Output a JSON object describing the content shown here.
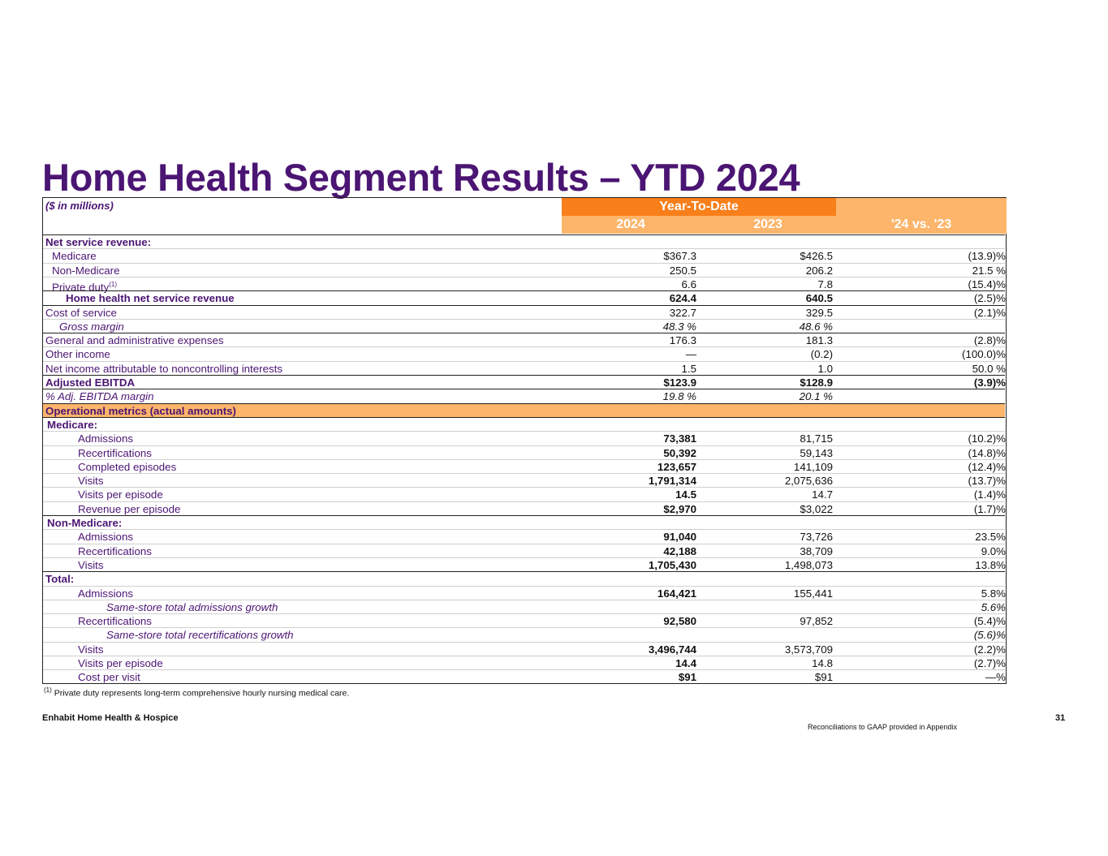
{
  "title": "Home Health Segment Results – YTD 2024",
  "units_label": "($ in millions)",
  "header": {
    "group": "Year-To-Date",
    "col1": "2024",
    "col2": "2023",
    "col3": "'24 vs. '23"
  },
  "rows": [
    {
      "label": "Net service revenue:",
      "v24": "",
      "v23": "",
      "ch": ""
    },
    {
      "label": "Medicare",
      "v24": "$367.3",
      "v23": "$426.5",
      "ch": "(13.9)%"
    },
    {
      "label": "Non-Medicare",
      "v24": "250.5",
      "v23": "206.2",
      "ch": "21.5 %"
    },
    {
      "label": "Private duty",
      "sup": "(1)",
      "v24": "6.6",
      "v23": "7.8",
      "ch": "(15.4)%"
    },
    {
      "label": "Home health net service revenue",
      "v24": "624.4",
      "v23": "640.5",
      "ch": "(2.5)%"
    },
    {
      "label": "Cost of service",
      "v24": "322.7",
      "v23": "329.5",
      "ch": "(2.1)%"
    },
    {
      "label": "Gross margin",
      "v24": "48.3 %",
      "v23": "48.6 %",
      "ch": ""
    },
    {
      "label": "General and administrative expenses",
      "v24": "176.3",
      "v23": "181.3",
      "ch": "(2.8)%"
    },
    {
      "label": "Other income",
      "v24": "—",
      "v23": "(0.2)",
      "ch": "(100.0)%"
    },
    {
      "label": "Net income attributable to noncontrolling interests",
      "v24": "1.5",
      "v23": "1.0",
      "ch": "50.0 %"
    },
    {
      "label": "Adjusted EBITDA",
      "v24": "$123.9",
      "v23": "$128.9",
      "ch": "(3.9)%"
    },
    {
      "label": "% Adj. EBITDA margin",
      "v24": "19.8 %",
      "v23": "20.1 %",
      "ch": ""
    },
    {
      "label": "Operational metrics (actual amounts)",
      "v24": "",
      "v23": "",
      "ch": ""
    },
    {
      "label": "Medicare:",
      "v24": "",
      "v23": "",
      "ch": ""
    },
    {
      "label": "Admissions",
      "v24": "73,381",
      "v23": "81,715",
      "ch": "(10.2)%"
    },
    {
      "label": "Recertifications",
      "v24": "50,392",
      "v23": "59,143",
      "ch": "(14.8)%"
    },
    {
      "label": "Completed episodes",
      "v24": "123,657",
      "v23": "141,109",
      "ch": "(12.4)%"
    },
    {
      "label": "Visits",
      "v24": "1,791,314",
      "v23": "2,075,636",
      "ch": "(13.7)%"
    },
    {
      "label": "Visits per episode",
      "v24": "14.5",
      "v23": "14.7",
      "ch": "(1.4)%"
    },
    {
      "label": "Revenue per episode",
      "v24": "$2,970",
      "v23": "$3,022",
      "ch": "(1.7)%"
    },
    {
      "label": "Non-Medicare:",
      "v24": "",
      "v23": "",
      "ch": ""
    },
    {
      "label": "Admissions",
      "v24": "91,040",
      "v23": "73,726",
      "ch": "23.5%"
    },
    {
      "label": "Recertifications",
      "v24": "42,188",
      "v23": "38,709",
      "ch": "9.0%"
    },
    {
      "label": "Visits",
      "v24": "1,705,430",
      "v23": "1,498,073",
      "ch": "13.8%"
    },
    {
      "label": "Total:",
      "v24": "",
      "v23": "",
      "ch": ""
    },
    {
      "label": "Admissions",
      "v24": "164,421",
      "v23": "155,441",
      "ch": "5.8%"
    },
    {
      "label": "Same-store total admissions growth",
      "v24": "",
      "v23": "",
      "ch": "5.6%"
    },
    {
      "label": "Recertifications",
      "v24": "92,580",
      "v23": "97,852",
      "ch": "(5.4)%"
    },
    {
      "label": "Same-store total recertifications growth",
      "v24": "",
      "v23": "",
      "ch": "(5.6)%"
    },
    {
      "label": "Visits",
      "v24": "3,496,744",
      "v23": "3,573,709",
      "ch": "(2.2)%"
    },
    {
      "label": "Visits per episode",
      "v24": "14.4",
      "v23": "14.8",
      "ch": "(2.7)%"
    },
    {
      "label": "Cost per visit",
      "v24": "$91",
      "v23": "$91",
      "ch": "—%"
    }
  ],
  "footnote_marker": "(1)",
  "footnote": "Private duty represents long-term comprehensive hourly nursing medical care.",
  "company": "Enhabit Home Health & Hospice",
  "page_number": "31",
  "reconciliation_note": "Reconciliations to GAAP provided in Appendix",
  "colors": {
    "title": "#4b1573",
    "orange_dark": "#f97f1a",
    "orange_light": "#fdb56b"
  }
}
